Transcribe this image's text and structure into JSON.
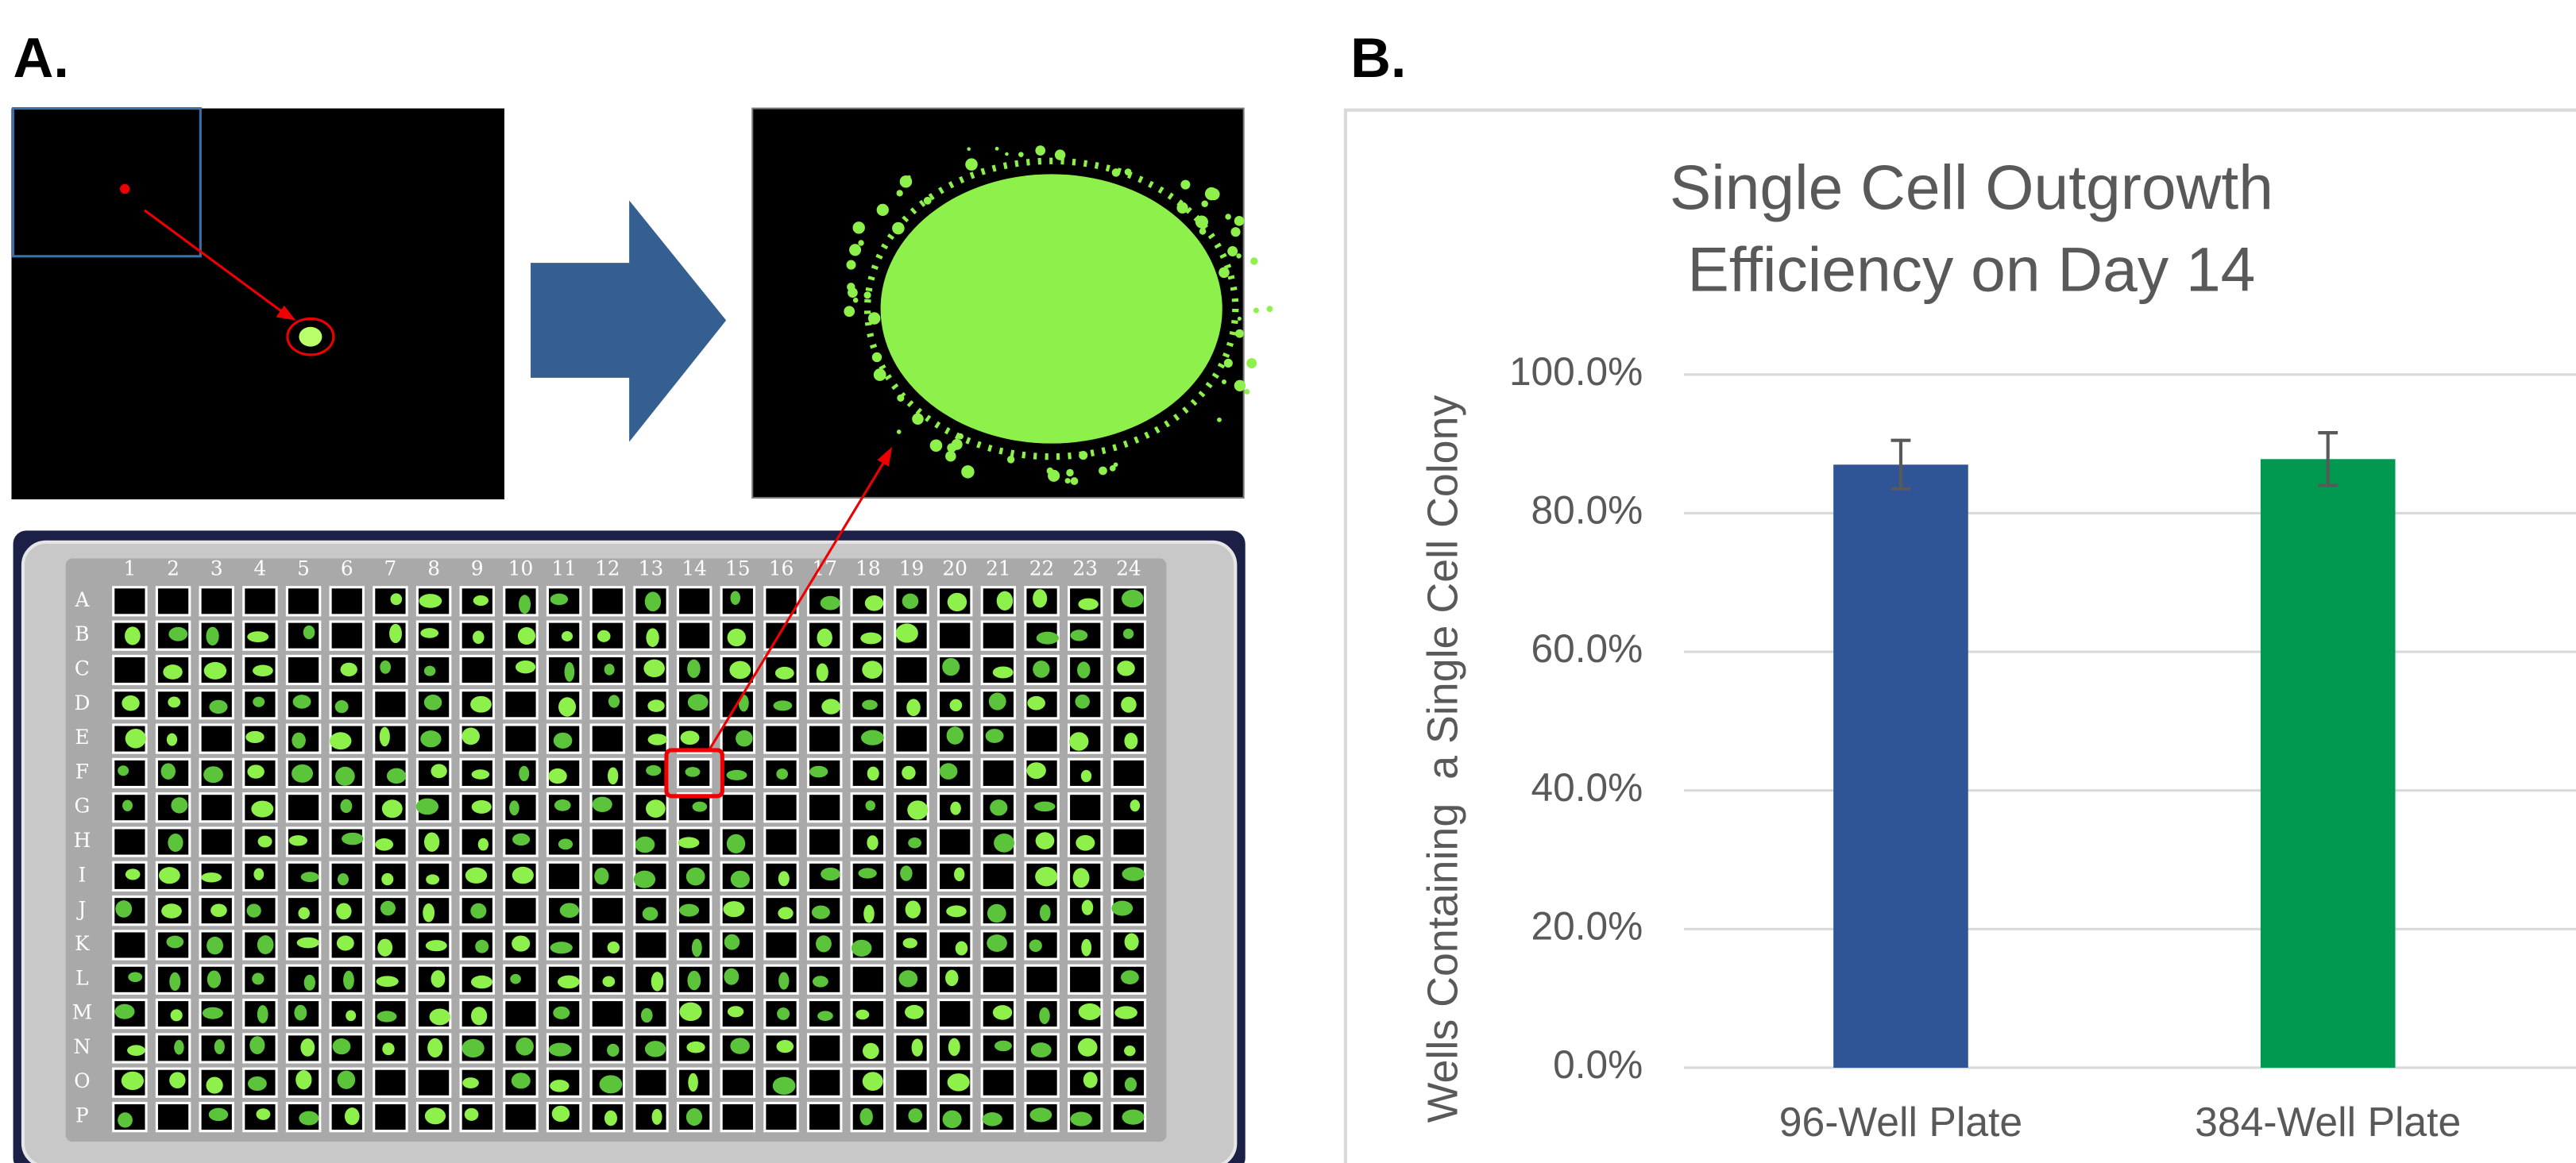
{
  "panels": [
    "A.",
    "B."
  ],
  "plate": {
    "columns": [
      "1",
      "2",
      "3",
      "4",
      "5",
      "6",
      "7",
      "8",
      "9",
      "10",
      "11",
      "12",
      "13",
      "14",
      "15",
      "16",
      "17",
      "18",
      "19",
      "20",
      "21",
      "22",
      "23",
      "24"
    ],
    "rows": [
      "A",
      "B",
      "C",
      "D",
      "E",
      "F",
      "G",
      "H",
      "I",
      "J",
      "K",
      "L",
      "M",
      "N",
      "O",
      "P"
    ]
  },
  "chart_data": {
    "type": "bar",
    "title": "Single Cell Outgrowth Efficiency on Day 14",
    "y_label": "Wells Containing  a Single Cell Colony",
    "categories": [
      "96-Well Plate",
      "384-Well Plate"
    ],
    "values": [
      87.0,
      87.8
    ],
    "errors": [
      3.5,
      3.8
    ],
    "colors": [
      "#2f5597",
      "#00994f"
    ],
    "ylim": [
      0,
      100
    ],
    "yticks": [
      {
        "value": 0,
        "label": "0.0%"
      },
      {
        "value": 20,
        "label": "20.0%"
      },
      {
        "value": 40,
        "label": "40.0%"
      },
      {
        "value": 60,
        "label": "60.0%"
      },
      {
        "value": 80,
        "label": "80.0%"
      },
      {
        "value": 100,
        "label": "100.0%"
      }
    ],
    "grid": true
  }
}
